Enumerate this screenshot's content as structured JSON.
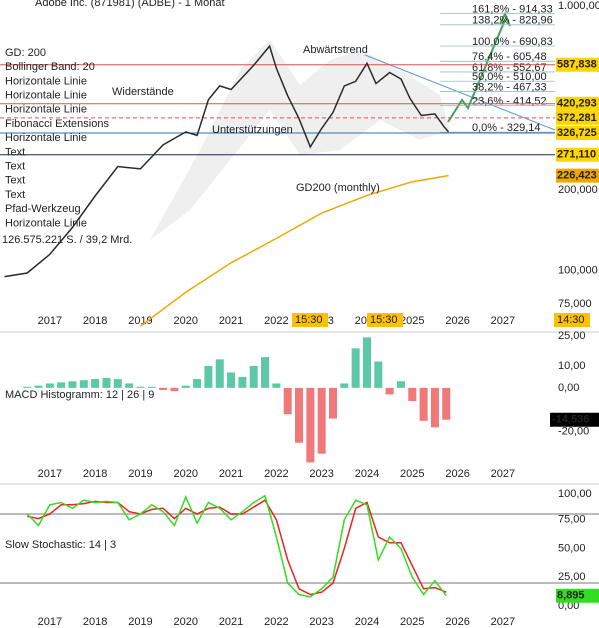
{
  "chart_data": [
    {
      "type": "line",
      "title": "Adobe Inc. (871981) (ADBE) - 1 Monat",
      "log_scale": true,
      "grid": false,
      "xlim": [
        2015.9,
        2028.15
      ],
      "xticks": [
        2017,
        2018,
        2019,
        2020,
        2021,
        2022,
        2023,
        2024,
        2025,
        2026,
        2027
      ],
      "ylim": [
        60,
        1000
      ],
      "yticks": [
        {
          "value": 1000,
          "label": "1.000,00"
        },
        {
          "value": 200,
          "label": "200,000"
        },
        {
          "value": 100,
          "label": "100,000"
        },
        {
          "value": 75,
          "label": "75,000"
        }
      ],
      "series": [
        {
          "color": "#2b2b2b",
          "x": [
            2016.0,
            2016.5,
            2017.0,
            2017.5,
            2018.0,
            2018.5,
            2019.0,
            2019.5,
            2020.0,
            2020.25,
            2020.5,
            2020.75,
            2021.0,
            2021.5,
            2021.85,
            2022.0,
            2022.25,
            2022.5,
            2022.75,
            2023.0,
            2023.25,
            2023.5,
            2023.75,
            2024.0,
            2024.2,
            2024.5,
            2024.75,
            2024.95,
            2025.2,
            2025.5,
            2025.7,
            2025.8
          ],
          "values": [
            95,
            98,
            115,
            145,
            190,
            245,
            240,
            295,
            330,
            320,
            435,
            490,
            475,
            585,
            690,
            570,
            450,
            370,
            290,
            340,
            390,
            490,
            510,
            595,
            500,
            550,
            520,
            440,
            380,
            385,
            345,
            330
          ]
        },
        {
          "name": "GD200 (monthly)",
          "color": "#f0a800",
          "last_label": "226,423",
          "label_bg": "#f0a800",
          "x": [
            2019.0,
            2020.0,
            2021.0,
            2022.0,
            2023.0,
            2024.0,
            2025.0,
            2025.8
          ],
          "values": [
            62,
            83,
            107,
            132,
            164,
            191,
            215,
            226.423
          ]
        }
      ],
      "indicators": [
        {
          "text": "GD: 200",
          "color": "#000000"
        },
        {
          "text": "Bollinger Band: 20",
          "color": "#000000"
        },
        {
          "text": "Horizontale Linie",
          "color": "#e05050"
        },
        {
          "text": "Horizontale Linie",
          "color": "#2a6fb5"
        },
        {
          "text": "Horizontale Linie",
          "color": "#2a6fb5"
        },
        {
          "text": "Fibonacci Extensions",
          "color": "#777777"
        },
        {
          "text": "Horizontale Linie",
          "color": "#e05050"
        },
        {
          "text": "Text",
          "color": "#000000"
        },
        {
          "text": "Text",
          "color": "#000000"
        },
        {
          "text": "Text",
          "color": "#000000"
        },
        {
          "text": "Text",
          "color": "#000000"
        },
        {
          "text": "Pfad-Werkzeug",
          "color": "#777777"
        },
        {
          "text": "Horizontale Linie",
          "color": "#e05050"
        }
      ],
      "fibonacci": [
        {
          "value": 914.33,
          "label": "161,8% - 914,33"
        },
        {
          "value": 828.96,
          "label": "138,2% - 828,96"
        },
        {
          "value": 690.83,
          "label": "100,0% - 690,83"
        },
        {
          "value": 605.48,
          "label": "76,4% - 605,48"
        },
        {
          "value": 552.67,
          "label": "61,8% - 552,67"
        },
        {
          "value": 510.0,
          "label": "50,0% - 510,00"
        },
        {
          "value": 467.33,
          "label": "38,2% - 467,33"
        },
        {
          "value": 414.52,
          "label": "23,6% - 414,52"
        },
        {
          "value": 329.14,
          "label": "0,0% - 329,14"
        }
      ],
      "hlines": [
        {
          "value": 587.838,
          "label": "587,838",
          "color": "#e05050",
          "label_bg": "#ffd500",
          "dashed": false
        },
        {
          "value": 420.293,
          "label": "420,293",
          "color": "#e05050",
          "label_bg": "#ffd500",
          "dashed": false
        },
        {
          "value": 372.281,
          "label": "372,281",
          "color": "#e05050",
          "label_bg": "#ffd500",
          "dashed": true
        },
        {
          "value": 326.725,
          "label": "326,725",
          "color": "#2a6fb5",
          "label_bg": "#ffd500",
          "dashed": false
        },
        {
          "value": 271.11,
          "label": "271,110",
          "color": "#1c2b4a",
          "label_bg": "#ffd500",
          "dashed": false
        }
      ],
      "annotations": [
        {
          "text": "Abwärtstrend",
          "color": "#2a6fb5"
        },
        {
          "text": "Widerstände",
          "color": "#e05050"
        },
        {
          "text": "Unterstützungen",
          "color": "#2a6fb5"
        }
      ],
      "volume_text": "126.575.221 S. / 39,2 Mrd.",
      "time_labels": [
        "15:30",
        "15:30",
        "14:30"
      ]
    },
    {
      "type": "bar",
      "title": "MACD Histogramm: 12 | 26 | 9",
      "grid": false,
      "xlim": [
        2015.9,
        2028.15
      ],
      "xticks": [
        2017,
        2018,
        2019,
        2020,
        2021,
        2022,
        2023,
        2024,
        2025,
        2026,
        2027
      ],
      "ylim": [
        -42,
        25
      ],
      "yticks": [
        {
          "value": 25,
          "label": "25,00"
        },
        {
          "value": 10,
          "label": "10,00"
        },
        {
          "value": 0,
          "label": "0,00"
        },
        {
          "value": -20,
          "label": "-20,00"
        }
      ],
      "colors": {
        "positive": "#5cc8a5",
        "negative": "#f07878"
      },
      "x": [
        2016.5,
        2016.75,
        2017.0,
        2017.25,
        2017.5,
        2017.75,
        2018.0,
        2018.25,
        2018.5,
        2018.75,
        2019.0,
        2019.25,
        2019.5,
        2019.75,
        2020.0,
        2020.25,
        2020.5,
        2020.75,
        2021.0,
        2021.25,
        2021.5,
        2021.75,
        2022.0,
        2022.25,
        2022.5,
        2022.75,
        2023.0,
        2023.25,
        2023.5,
        2023.75,
        2024.0,
        2024.25,
        2024.5,
        2024.75,
        2025.0,
        2025.25,
        2025.5,
        2025.75
      ],
      "values": [
        0.5,
        1,
        2,
        2.5,
        3,
        3.5,
        4,
        4.5,
        4,
        2,
        0.5,
        0.5,
        -1,
        -1.5,
        1,
        4,
        10,
        13,
        7,
        5,
        10,
        14,
        2,
        -12,
        -25,
        -34,
        -30,
        -14,
        2,
        18,
        23,
        12,
        -3,
        3,
        -6,
        -15,
        -18,
        -14.536
      ],
      "last_value_label": "-14,536"
    },
    {
      "type": "line",
      "title": "Slow Stochastic: 14 | 3",
      "grid": false,
      "xlim": [
        2015.9,
        2028.15
      ],
      "xticks": [
        2017,
        2018,
        2019,
        2020,
        2021,
        2022,
        2023,
        2024,
        2025,
        2026,
        2027
      ],
      "ylim": [
        0,
        100
      ],
      "yticks": [
        {
          "value": 100,
          "label": "100,00"
        },
        {
          "value": 75,
          "label": "75,00"
        },
        {
          "value": 50,
          "label": "50,00"
        },
        {
          "value": 25,
          "label": "25,00"
        },
        {
          "value": 0,
          "label": "0,00"
        }
      ],
      "levels": [
        80,
        20
      ],
      "series": [
        {
          "color": "#ee2222",
          "x": [
            2016.5,
            2016.75,
            2017.0,
            2017.25,
            2017.5,
            2017.75,
            2018.0,
            2018.25,
            2018.5,
            2018.75,
            2019.0,
            2019.25,
            2019.5,
            2019.75,
            2020.0,
            2020.25,
            2020.5,
            2020.75,
            2021.0,
            2021.25,
            2021.5,
            2021.75,
            2022.0,
            2022.25,
            2022.5,
            2022.75,
            2023.0,
            2023.25,
            2023.5,
            2023.75,
            2024.0,
            2024.25,
            2024.5,
            2024.75,
            2025.0,
            2025.25,
            2025.5,
            2025.75
          ],
          "values": [
            78,
            76,
            80,
            88,
            88,
            89,
            91,
            90,
            90,
            82,
            80,
            84,
            85,
            76,
            85,
            80,
            85,
            86,
            80,
            80,
            86,
            92,
            75,
            40,
            15,
            10,
            12,
            20,
            50,
            85,
            90,
            60,
            55,
            55,
            35,
            15,
            16,
            12
          ]
        },
        {
          "color": "#33dd22",
          "x": [
            2016.5,
            2016.75,
            2017.0,
            2017.25,
            2017.5,
            2017.75,
            2018.0,
            2018.25,
            2018.5,
            2018.75,
            2019.0,
            2019.25,
            2019.5,
            2019.75,
            2020.0,
            2020.25,
            2020.5,
            2020.75,
            2021.0,
            2021.25,
            2021.5,
            2021.75,
            2022.0,
            2022.25,
            2022.5,
            2022.75,
            2023.0,
            2023.25,
            2023.5,
            2023.75,
            2024.0,
            2024.25,
            2024.5,
            2024.75,
            2025.0,
            2025.25,
            2025.5,
            2025.75
          ],
          "values": [
            80,
            70,
            88,
            90,
            85,
            92,
            90,
            91,
            90,
            75,
            80,
            88,
            82,
            70,
            95,
            72,
            90,
            85,
            75,
            82,
            90,
            96,
            60,
            20,
            10,
            8,
            15,
            25,
            75,
            92,
            88,
            40,
            60,
            50,
            25,
            10,
            22,
            8.895
          ],
          "last_label": "8,895",
          "label_bg": "#33dd22"
        }
      ]
    }
  ]
}
